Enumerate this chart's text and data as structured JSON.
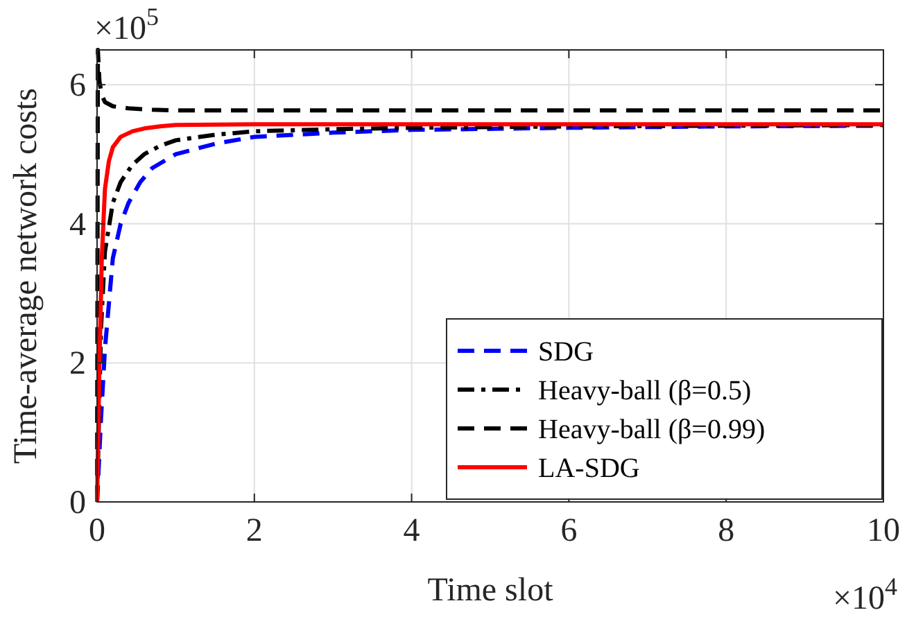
{
  "chart_data": {
    "type": "line",
    "xlabel": "Time slot",
    "ylabel": "Time-average network costs",
    "annotations": [
      "×10$^{5}$",
      "×10$^{4}$"
    ],
    "xlim": [
      0,
      10
    ],
    "ylim": [
      0,
      6.5
    ],
    "xticks": [
      0,
      2,
      4,
      6,
      8,
      10
    ],
    "yticks": [
      0,
      2,
      4,
      6
    ],
    "grid": true,
    "legend": "bottom right",
    "series": [
      {
        "name": "SDG",
        "color": "#0000ff",
        "line_style": "dashed",
        "x": [
          0,
          0.05,
          0.1,
          0.2,
          0.3,
          0.4,
          0.55,
          0.7,
          1,
          1.5,
          2,
          3,
          4,
          6,
          8,
          10
        ],
        "values": [
          0,
          1.2,
          2.2,
          3.5,
          4.0,
          4.3,
          4.6,
          4.8,
          5.0,
          5.15,
          5.25,
          5.31,
          5.35,
          5.38,
          5.4,
          5.41
        ]
      },
      {
        "name": "Heavy-ball (β=0.5)",
        "color": "#000000",
        "line_style": "dashdot",
        "x": [
          0,
          0.05,
          0.1,
          0.2,
          0.3,
          0.45,
          0.6,
          0.8,
          1,
          1.5,
          2,
          3,
          4,
          6,
          8,
          10
        ],
        "values": [
          0,
          2.5,
          3.6,
          4.3,
          4.6,
          4.85,
          5.0,
          5.12,
          5.2,
          5.28,
          5.33,
          5.36,
          5.38,
          5.4,
          5.41,
          5.42
        ]
      },
      {
        "name": "Heavy-ball (β=0.99)",
        "color": "#000000",
        "line_style": "dashed",
        "x": [
          0,
          0.01,
          0.03,
          0.06,
          0.1,
          0.2,
          0.4,
          0.7,
          1,
          2,
          4,
          6,
          8,
          10
        ],
        "values": [
          0,
          6.5,
          6.05,
          5.85,
          5.75,
          5.69,
          5.66,
          5.64,
          5.63,
          5.63,
          5.63,
          5.63,
          5.63,
          5.63
        ]
      },
      {
        "name": "LA-SDG",
        "color": "#ff0000",
        "line_style": "solid",
        "x": [
          0,
          0.03,
          0.06,
          0.1,
          0.15,
          0.2,
          0.3,
          0.45,
          0.6,
          0.8,
          1,
          2,
          4,
          6,
          8,
          10
        ],
        "values": [
          0,
          2.0,
          3.5,
          4.5,
          4.9,
          5.1,
          5.25,
          5.33,
          5.37,
          5.4,
          5.42,
          5.43,
          5.43,
          5.43,
          5.43,
          5.43
        ]
      }
    ]
  }
}
